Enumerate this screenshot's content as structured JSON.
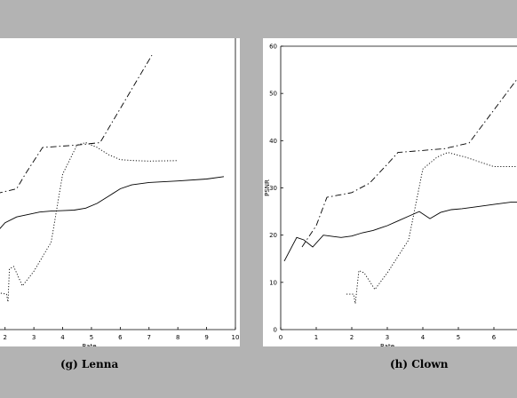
{
  "captions": {
    "left": "(g) Lenna",
    "right": "(h) Clown"
  },
  "chart_data": [
    {
      "type": "line",
      "title": "",
      "xlabel": "Rate",
      "ylabel": "",
      "xlim": [
        1.7,
        10
      ],
      "ylim": [
        0,
        60
      ],
      "xticks": [
        2,
        3,
        4,
        5,
        6,
        7,
        8,
        9,
        10
      ],
      "grid": false,
      "series": [
        {
          "style": "solid",
          "x": [
            1.7,
            2.0,
            2.4,
            2.8,
            3.2,
            3.6,
            4.0,
            4.4,
            4.8,
            5.2,
            5.6,
            6.0,
            6.4,
            7.0,
            8.0,
            9.0,
            9.6
          ],
          "y": [
            20.0,
            22.0,
            23.2,
            23.7,
            24.2,
            24.4,
            24.5,
            24.6,
            25.0,
            26.0,
            27.5,
            29.0,
            29.8,
            30.3,
            30.6,
            31.0,
            31.5
          ]
        },
        {
          "style": "dashdot",
          "x": [
            1.7,
            2.4,
            2.7,
            3.3,
            4.5,
            5.3,
            7.1
          ],
          "y": [
            28.0,
            29.0,
            32.0,
            37.5,
            38.0,
            38.5,
            56.5
          ]
        },
        {
          "style": "dotted",
          "x": [
            1.85,
            2.05,
            2.1,
            2.15,
            2.3,
            2.6,
            3.0,
            3.6,
            4.0,
            4.5,
            4.8,
            5.2,
            5.6,
            6.0,
            6.5,
            7.0,
            8.0
          ],
          "y": [
            7.5,
            7.3,
            5.7,
            12.5,
            13.0,
            9.0,
            12.0,
            18.0,
            32.0,
            38.0,
            38.5,
            37.5,
            36.0,
            35.0,
            34.8,
            34.7,
            34.8
          ]
        }
      ]
    },
    {
      "type": "line",
      "title": "",
      "xlabel": "Rate",
      "ylabel": "PSNR",
      "xlim": [
        0,
        7
      ],
      "ylim": [
        0,
        60
      ],
      "xticks": [
        0,
        1,
        2,
        3,
        4,
        5,
        6
      ],
      "yticks": [
        0,
        10,
        20,
        30,
        40,
        50,
        60
      ],
      "grid": false,
      "series": [
        {
          "style": "solid",
          "x": [
            0.1,
            0.45,
            0.65,
            0.9,
            1.2,
            1.5,
            1.7,
            2.0,
            2.3,
            2.6,
            2.8,
            3.0,
            3.3,
            3.6,
            3.9,
            4.2,
            4.5,
            4.8,
            5.1,
            5.5,
            6.0,
            6.5,
            7.0
          ],
          "y": [
            14.5,
            19.5,
            19.0,
            17.5,
            20.0,
            19.7,
            19.5,
            19.8,
            20.5,
            21.0,
            21.5,
            22.0,
            23.0,
            24.0,
            25.0,
            23.5,
            24.8,
            25.4,
            25.6,
            26.0,
            26.5,
            27.0,
            27.0
          ]
        },
        {
          "style": "dashdot",
          "x": [
            0.6,
            1.0,
            1.3,
            2.0,
            2.5,
            3.0,
            3.3,
            4.6,
            5.3,
            7.0
          ],
          "y": [
            17.5,
            22.0,
            28.0,
            29.0,
            31.0,
            35.0,
            37.5,
            38.3,
            39.5,
            56.5
          ]
        },
        {
          "style": "dotted",
          "x": [
            1.85,
            2.05,
            2.1,
            2.2,
            2.35,
            2.65,
            3.0,
            3.6,
            4.0,
            4.4,
            4.7,
            5.2,
            6.0,
            7.0
          ],
          "y": [
            7.5,
            7.5,
            5.5,
            12.5,
            12.0,
            8.5,
            12.0,
            19.0,
            34.0,
            36.5,
            37.5,
            36.5,
            34.5,
            34.5
          ]
        }
      ]
    }
  ]
}
